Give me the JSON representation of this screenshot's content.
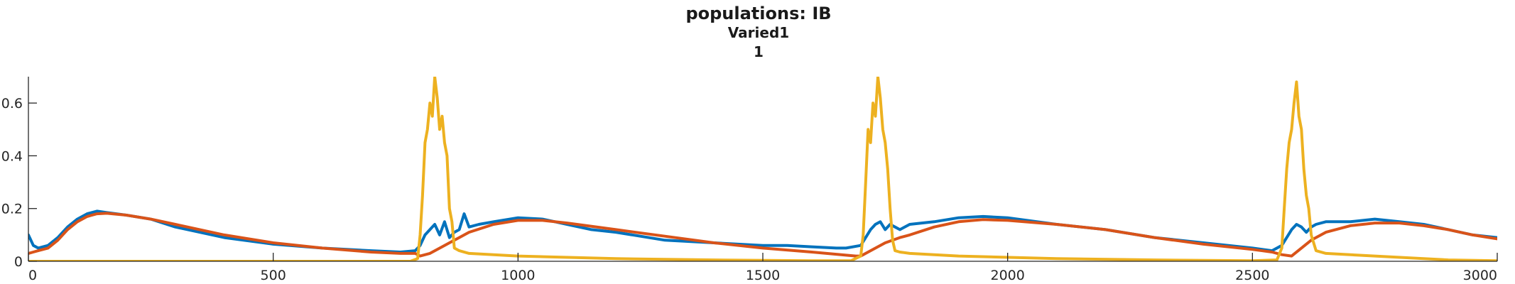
{
  "chart_data": {
    "type": "line",
    "title": "populations: IB",
    "subtitle": "Varied1",
    "subtitle2": "1",
    "xlabel": "",
    "ylabel": "",
    "xlim": [
      0,
      3000
    ],
    "ylim": [
      0,
      0.7
    ],
    "xticks": [
      0,
      500,
      1000,
      1500,
      2000,
      2500,
      3000
    ],
    "xtick_labels": [
      "0",
      "500",
      "1000",
      "1500",
      "2000",
      "2500",
      "3000"
    ],
    "yticks": [
      0,
      0.2,
      0.4,
      0.6
    ],
    "ytick_labels": [
      "0",
      "0.2",
      "0.4",
      "0.6"
    ],
    "grid": false,
    "legend": "none",
    "series": [
      {
        "color": "#0072BD",
        "style": "spiky",
        "x": [
          0,
          10,
          20,
          40,
          60,
          80,
          100,
          120,
          140,
          160,
          200,
          250,
          300,
          400,
          500,
          600,
          700,
          760,
          790,
          800,
          810,
          820,
          830,
          840,
          850,
          860,
          870,
          880,
          890,
          900,
          920,
          950,
          1000,
          1050,
          1100,
          1150,
          1200,
          1300,
          1400,
          1500,
          1550,
          1600,
          1650,
          1670,
          1700,
          1710,
          1720,
          1730,
          1740,
          1750,
          1760,
          1770,
          1780,
          1800,
          1850,
          1900,
          1950,
          2000,
          2100,
          2200,
          2300,
          2400,
          2500,
          2540,
          2560,
          2570,
          2580,
          2590,
          2600,
          2610,
          2620,
          2630,
          2650,
          2700,
          2750,
          2800,
          2850,
          2900,
          2950,
          3000
        ],
        "y": [
          0.1,
          0.06,
          0.05,
          0.06,
          0.09,
          0.13,
          0.16,
          0.18,
          0.19,
          0.185,
          0.175,
          0.16,
          0.13,
          0.09,
          0.065,
          0.05,
          0.04,
          0.035,
          0.04,
          0.06,
          0.1,
          0.12,
          0.14,
          0.1,
          0.15,
          0.09,
          0.11,
          0.12,
          0.18,
          0.13,
          0.14,
          0.15,
          0.165,
          0.16,
          0.14,
          0.12,
          0.11,
          0.08,
          0.07,
          0.06,
          0.06,
          0.055,
          0.05,
          0.05,
          0.06,
          0.09,
          0.12,
          0.14,
          0.15,
          0.12,
          0.14,
          0.13,
          0.12,
          0.14,
          0.15,
          0.165,
          0.17,
          0.165,
          0.14,
          0.12,
          0.09,
          0.07,
          0.05,
          0.04,
          0.06,
          0.09,
          0.12,
          0.14,
          0.13,
          0.11,
          0.13,
          0.14,
          0.15,
          0.15,
          0.16,
          0.15,
          0.14,
          0.12,
          0.1,
          0.09
        ]
      },
      {
        "color": "#D95319",
        "style": "smooth",
        "x": [
          0,
          10,
          20,
          40,
          60,
          80,
          100,
          120,
          140,
          160,
          200,
          250,
          300,
          400,
          500,
          600,
          700,
          760,
          790,
          800,
          820,
          850,
          880,
          900,
          950,
          1000,
          1050,
          1100,
          1200,
          1300,
          1400,
          1500,
          1600,
          1660,
          1690,
          1700,
          1720,
          1750,
          1780,
          1800,
          1850,
          1900,
          1950,
          2000,
          2100,
          2200,
          2300,
          2400,
          2500,
          2540,
          2560,
          2580,
          2600,
          2620,
          2650,
          2700,
          2750,
          2800,
          2850,
          2900,
          2950,
          3000
        ],
        "y": [
          0.03,
          0.035,
          0.04,
          0.05,
          0.08,
          0.12,
          0.15,
          0.17,
          0.18,
          0.182,
          0.175,
          0.16,
          0.14,
          0.1,
          0.07,
          0.05,
          0.035,
          0.03,
          0.03,
          0.02,
          0.03,
          0.06,
          0.09,
          0.11,
          0.14,
          0.155,
          0.155,
          0.145,
          0.12,
          0.095,
          0.07,
          0.05,
          0.035,
          0.025,
          0.02,
          0.02,
          0.04,
          0.07,
          0.09,
          0.1,
          0.13,
          0.15,
          0.158,
          0.155,
          0.14,
          0.12,
          0.09,
          0.065,
          0.045,
          0.035,
          0.025,
          0.02,
          0.05,
          0.08,
          0.11,
          0.135,
          0.145,
          0.145,
          0.135,
          0.12,
          0.1,
          0.085
        ]
      },
      {
        "color": "#EDB120",
        "style": "burst",
        "x": [
          0,
          100,
          200,
          300,
          400,
          500,
          600,
          700,
          780,
          795,
          800,
          805,
          810,
          815,
          820,
          825,
          830,
          835,
          840,
          845,
          850,
          855,
          860,
          865,
          870,
          880,
          900,
          1000,
          1200,
          1400,
          1600,
          1680,
          1700,
          1705,
          1710,
          1715,
          1720,
          1725,
          1730,
          1735,
          1740,
          1745,
          1750,
          1755,
          1760,
          1765,
          1770,
          1780,
          1800,
          1900,
          2100,
          2300,
          2500,
          2550,
          2560,
          2565,
          2570,
          2575,
          2580,
          2585,
          2590,
          2595,
          2600,
          2605,
          2610,
          2615,
          2620,
          2630,
          2650,
          2750,
          2900,
          3000
        ],
        "y": [
          0,
          0,
          0,
          0,
          0,
          0,
          0,
          0,
          0,
          0.01,
          0.1,
          0.25,
          0.45,
          0.5,
          0.6,
          0.55,
          0.7,
          0.62,
          0.5,
          0.55,
          0.45,
          0.4,
          0.2,
          0.15,
          0.05,
          0.04,
          0.03,
          0.02,
          0.01,
          0.005,
          0.002,
          0.002,
          0.02,
          0.1,
          0.3,
          0.5,
          0.45,
          0.6,
          0.55,
          0.7,
          0.62,
          0.5,
          0.45,
          0.35,
          0.2,
          0.08,
          0.04,
          0.035,
          0.03,
          0.02,
          0.01,
          0.005,
          0.002,
          0.005,
          0.05,
          0.2,
          0.35,
          0.45,
          0.5,
          0.6,
          0.68,
          0.55,
          0.5,
          0.35,
          0.25,
          0.2,
          0.1,
          0.04,
          0.03,
          0.02,
          0.005,
          0.002
        ]
      }
    ]
  }
}
